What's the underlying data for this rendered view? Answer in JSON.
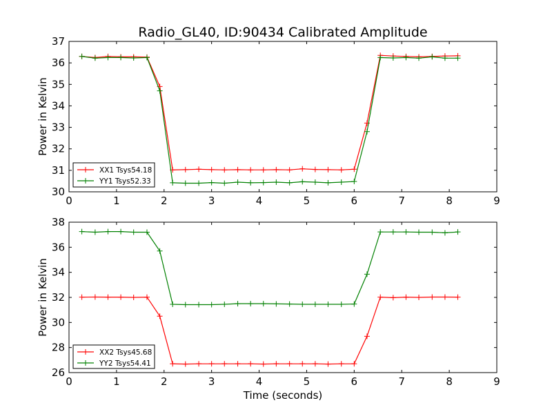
{
  "figure": {
    "title": "Radio_GL40, ID:90434 Calibrated Amplitude"
  },
  "chart_data": [
    {
      "type": "line",
      "title": "Radio_GL40, ID:90434 Calibrated Amplitude",
      "xlabel": "",
      "ylabel": "Power in Kelvin",
      "xlim": [
        0,
        9
      ],
      "ylim": [
        30,
        37
      ],
      "xticks": [
        "0",
        "1",
        "2",
        "3",
        "4",
        "5",
        "6",
        "7",
        "8",
        "9"
      ],
      "yticks": [
        "30",
        "31",
        "32",
        "33",
        "34",
        "35",
        "36",
        "37"
      ],
      "grid": false,
      "legend_position": "lower-left",
      "x": [
        0.27,
        0.55,
        0.82,
        1.09,
        1.36,
        1.64,
        1.91,
        2.18,
        2.45,
        2.73,
        3.0,
        3.27,
        3.55,
        3.82,
        4.09,
        4.36,
        4.64,
        4.91,
        5.18,
        5.45,
        5.73,
        6.0,
        6.27,
        6.55,
        6.82,
        7.09,
        7.36,
        7.64,
        7.91,
        8.18
      ],
      "series": [
        {
          "name": "XX1 Tsys54.18",
          "color": "#ff0000",
          "values": [
            36.3,
            36.25,
            36.3,
            36.28,
            36.28,
            36.27,
            34.9,
            31.02,
            31.03,
            31.05,
            31.03,
            31.02,
            31.03,
            31.02,
            31.02,
            31.03,
            31.02,
            31.07,
            31.04,
            31.03,
            31.02,
            31.05,
            33.2,
            36.35,
            36.32,
            36.3,
            36.28,
            36.3,
            36.32,
            36.33
          ]
        },
        {
          "name": "YY1 Tsys52.33",
          "color": "#008000",
          "values": [
            36.3,
            36.22,
            36.25,
            36.25,
            36.23,
            36.25,
            34.7,
            30.42,
            30.4,
            30.4,
            30.43,
            30.4,
            30.45,
            30.42,
            30.43,
            30.45,
            30.42,
            30.47,
            30.45,
            30.42,
            30.45,
            30.48,
            32.8,
            36.25,
            36.23,
            36.25,
            36.22,
            36.28,
            36.22,
            36.22
          ]
        }
      ]
    },
    {
      "type": "line",
      "title": "",
      "xlabel": "Time (seconds)",
      "ylabel": "Power in Kelvin",
      "xlim": [
        0,
        9
      ],
      "ylim": [
        26,
        38
      ],
      "xticks": [
        "0",
        "1",
        "2",
        "3",
        "4",
        "5",
        "6",
        "7",
        "8",
        "9"
      ],
      "yticks": [
        "26",
        "28",
        "30",
        "32",
        "34",
        "36",
        "38"
      ],
      "grid": false,
      "legend_position": "lower-left",
      "x": [
        0.27,
        0.55,
        0.82,
        1.09,
        1.36,
        1.64,
        1.91,
        2.18,
        2.45,
        2.73,
        3.0,
        3.27,
        3.55,
        3.82,
        4.09,
        4.36,
        4.64,
        4.91,
        5.18,
        5.45,
        5.73,
        6.0,
        6.27,
        6.55,
        6.82,
        7.09,
        7.36,
        7.64,
        7.91,
        8.18
      ],
      "series": [
        {
          "name": "XX2 Tsys45.68",
          "color": "#ff0000",
          "values": [
            32.02,
            32.03,
            32.02,
            32.02,
            32.0,
            32.02,
            30.5,
            26.7,
            26.68,
            26.7,
            26.7,
            26.7,
            26.7,
            26.7,
            26.68,
            26.7,
            26.7,
            26.7,
            26.7,
            26.68,
            26.7,
            26.7,
            28.9,
            32.02,
            31.98,
            32.02,
            32.0,
            32.03,
            32.03,
            32.02
          ]
        },
        {
          "name": "YY2 Tsys54.41",
          "color": "#008000",
          "values": [
            37.25,
            37.2,
            37.25,
            37.25,
            37.2,
            37.2,
            35.7,
            31.45,
            31.42,
            31.42,
            31.42,
            31.45,
            31.5,
            31.5,
            31.5,
            31.48,
            31.47,
            31.45,
            31.45,
            31.45,
            31.45,
            31.47,
            33.85,
            37.22,
            37.22,
            37.22,
            37.2,
            37.2,
            37.15,
            37.22
          ]
        }
      ]
    }
  ]
}
